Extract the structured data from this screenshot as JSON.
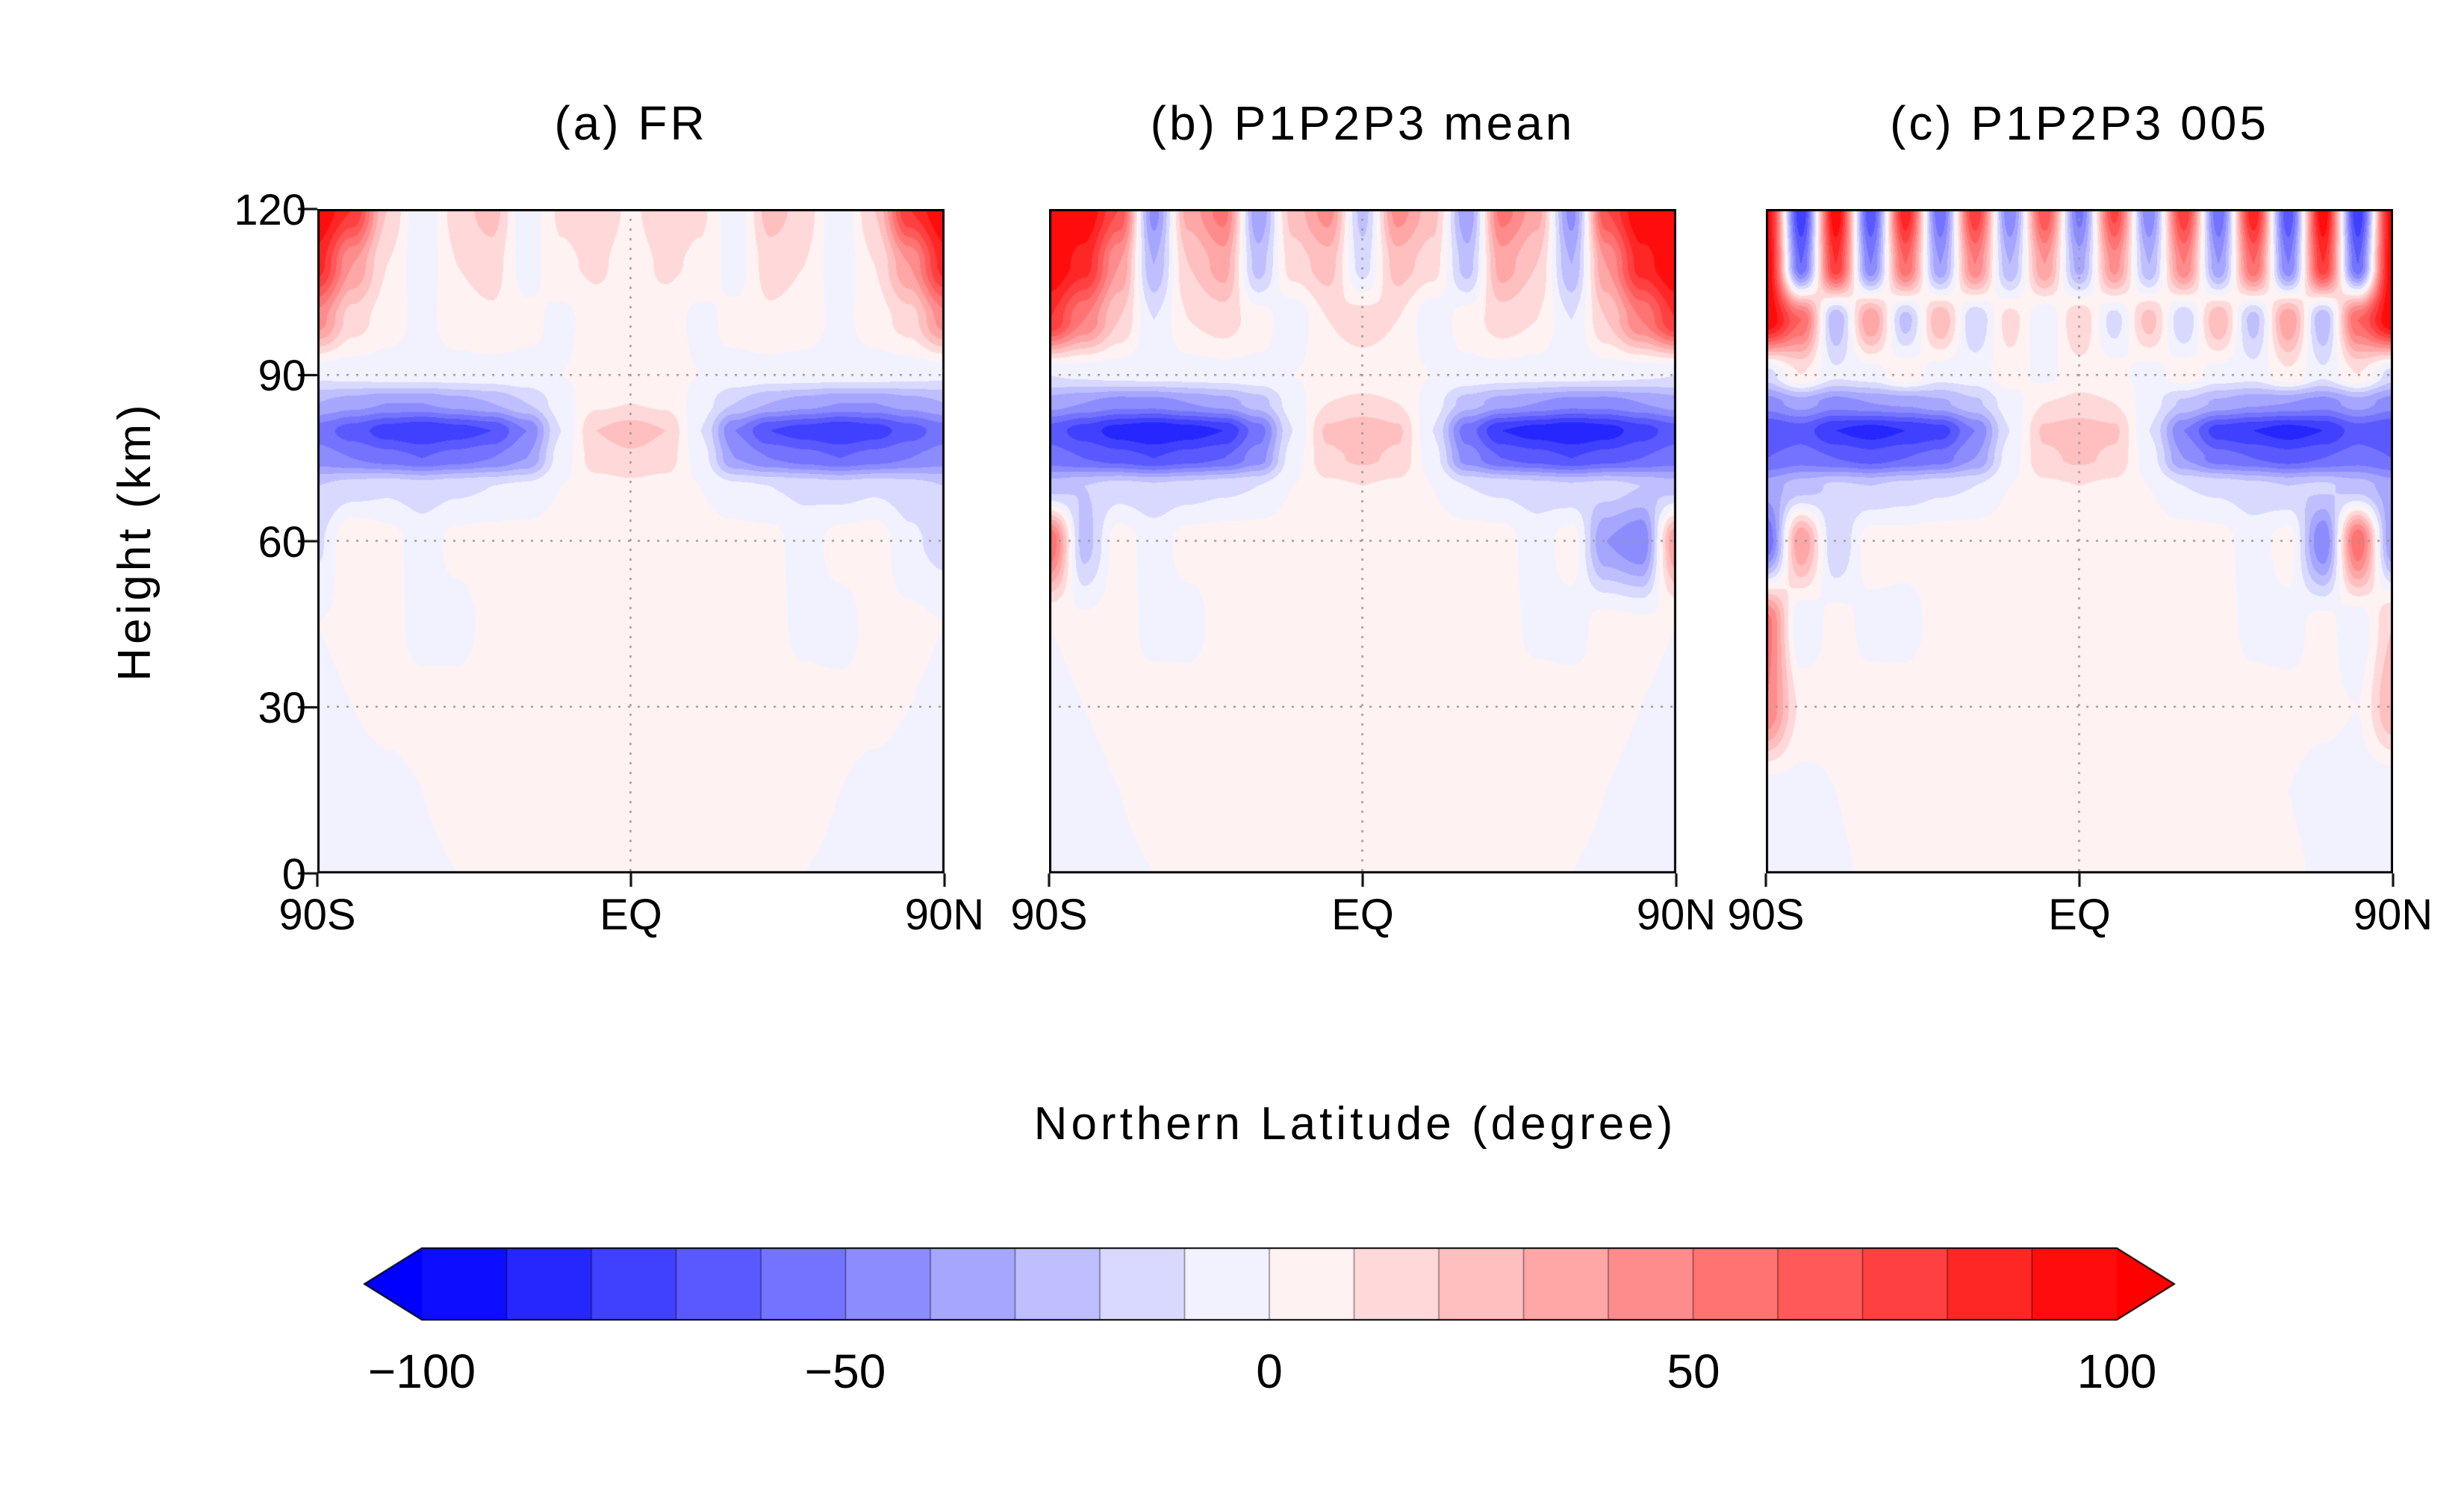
{
  "figure": {
    "y_axis": {
      "label": "Height (km)",
      "tick_labels": [
        "0",
        "30",
        "60",
        "90",
        "120"
      ],
      "tick_values": [
        0,
        30,
        60,
        90,
        120
      ],
      "range": [
        0,
        120
      ]
    },
    "x_axis": {
      "label": "Northern Latitude (degree)",
      "tick_labels": [
        "90S",
        "EQ",
        "90N"
      ],
      "tick_values": [
        -90,
        0,
        90
      ],
      "range": [
        -90,
        90
      ]
    },
    "gridlines": {
      "y_values": [
        30,
        60,
        90
      ],
      "x_values": [
        0
      ],
      "style": "dotted",
      "color": "#999999"
    },
    "colorbar": {
      "min": -100,
      "max": 100,
      "step": 10,
      "tick_labels": [
        "−100",
        "−50",
        "0",
        "50",
        "100"
      ],
      "tick_values": [
        -100,
        -50,
        0,
        50,
        100
      ],
      "negative_color": "#0000ff",
      "zero_color": "#ffffff",
      "positive_color": "#ff0000",
      "arrow_ends": true
    }
  },
  "chart_data": [
    {
      "type": "heatmap",
      "title": "(a) FR",
      "x_name": "latitude (degree)",
      "y_name": "height (km)",
      "value_range": [
        -100,
        100
      ],
      "contour_interval": 10,
      "x": [
        -90,
        -80,
        -70,
        -60,
        -50,
        -40,
        -30,
        -20,
        -10,
        0,
        10,
        20,
        30,
        40,
        50,
        60,
        70,
        80,
        90
      ],
      "y": [
        0,
        15,
        30,
        45,
        60,
        70,
        75,
        80,
        85,
        90,
        100,
        110,
        120
      ],
      "values": [
        [
          -3,
          -2,
          -2,
          -1,
          0,
          1,
          1,
          2,
          2,
          2,
          2,
          2,
          1,
          1,
          0,
          -1,
          -2,
          -2,
          -3
        ],
        [
          -4,
          -3,
          -2,
          0,
          2,
          3,
          4,
          4,
          5,
          5,
          4,
          4,
          4,
          3,
          2,
          0,
          -2,
          -3,
          -4
        ],
        [
          -2,
          0,
          2,
          3,
          4,
          5,
          5,
          6,
          6,
          6,
          6,
          5,
          5,
          5,
          4,
          3,
          2,
          0,
          -2
        ],
        [
          0,
          2,
          3,
          -3,
          -4,
          3,
          5,
          6,
          6,
          6,
          6,
          5,
          5,
          3,
          -3,
          -4,
          3,
          2,
          0
        ],
        [
          -12,
          10,
          4,
          -5,
          3,
          4,
          4,
          5,
          5,
          5,
          5,
          4,
          4,
          3,
          -5,
          4,
          6,
          -8,
          -14
        ],
        [
          -20,
          -15,
          -12,
          -15,
          -12,
          -10,
          -8,
          0,
          6,
          8,
          6,
          0,
          -8,
          -10,
          -12,
          -15,
          -12,
          -15,
          -20
        ],
        [
          -45,
          -50,
          -55,
          -60,
          -55,
          -50,
          -40,
          -5,
          15,
          18,
          15,
          -5,
          -40,
          -50,
          -55,
          -60,
          -55,
          -50,
          -45
        ],
        [
          -55,
          -65,
          -75,
          -80,
          -75,
          -70,
          -50,
          -10,
          20,
          25,
          20,
          -10,
          -50,
          -70,
          -75,
          -80,
          -75,
          -65,
          -55
        ],
        [
          -30,
          -35,
          -40,
          -40,
          -35,
          -30,
          -20,
          -5,
          8,
          10,
          8,
          -5,
          -20,
          -30,
          -35,
          -40,
          -40,
          -35,
          -30
        ],
        [
          -8,
          -6,
          -5,
          -5,
          -4,
          -4,
          -3,
          0,
          3,
          4,
          3,
          0,
          -3,
          -4,
          -4,
          -5,
          -5,
          -6,
          -8
        ],
        [
          45,
          15,
          5,
          -3,
          5,
          8,
          3,
          -3,
          5,
          8,
          5,
          -3,
          3,
          8,
          5,
          -3,
          5,
          15,
          45
        ],
        [
          85,
          40,
          10,
          -8,
          10,
          15,
          -5,
          8,
          12,
          5,
          12,
          8,
          -5,
          15,
          10,
          -8,
          10,
          40,
          85
        ],
        [
          100,
          80,
          20,
          -10,
          15,
          25,
          -8,
          12,
          18,
          8,
          18,
          12,
          -8,
          25,
          15,
          -10,
          20,
          80,
          100
        ]
      ]
    },
    {
      "type": "heatmap",
      "title": "(b) P1P2P3 mean",
      "x_name": "latitude (degree)",
      "y_name": "height (km)",
      "value_range": [
        -100,
        100
      ],
      "contour_interval": 10,
      "x": [
        -90,
        -80,
        -70,
        -60,
        -50,
        -40,
        -30,
        -20,
        -10,
        0,
        10,
        20,
        30,
        40,
        50,
        60,
        70,
        80,
        90
      ],
      "y": [
        0,
        15,
        30,
        45,
        60,
        70,
        75,
        80,
        85,
        90,
        100,
        110,
        120
      ],
      "values": [
        [
          -3,
          -2,
          -1,
          0,
          1,
          2,
          2,
          3,
          3,
          3,
          3,
          3,
          2,
          2,
          1,
          0,
          -1,
          -2,
          -3
        ],
        [
          -4,
          -2,
          0,
          2,
          3,
          4,
          5,
          5,
          6,
          6,
          5,
          5,
          5,
          4,
          3,
          2,
          0,
          -2,
          -4
        ],
        [
          -2,
          0,
          2,
          4,
          5,
          6,
          6,
          7,
          7,
          7,
          7,
          6,
          6,
          6,
          5,
          4,
          2,
          0,
          -2
        ],
        [
          0,
          2,
          4,
          -3,
          -4,
          4,
          6,
          7,
          7,
          7,
          7,
          6,
          6,
          4,
          -3,
          -4,
          4,
          2,
          0
        ],
        [
          60,
          -25,
          5,
          -5,
          4,
          5,
          5,
          6,
          6,
          6,
          6,
          5,
          5,
          4,
          -5,
          5,
          -40,
          -50,
          40
        ],
        [
          -25,
          -20,
          -15,
          -18,
          -15,
          -12,
          -10,
          0,
          8,
          10,
          8,
          0,
          -10,
          -12,
          -15,
          -18,
          -15,
          -20,
          -25
        ],
        [
          -55,
          -60,
          -65,
          -70,
          -65,
          -60,
          -45,
          -5,
          18,
          22,
          18,
          -5,
          -45,
          -60,
          -65,
          -70,
          -65,
          -60,
          -55
        ],
        [
          -65,
          -75,
          -85,
          -90,
          -85,
          -80,
          -55,
          -10,
          22,
          28,
          22,
          -10,
          -55,
          -80,
          -85,
          -90,
          -85,
          -75,
          -65
        ],
        [
          -35,
          -40,
          -45,
          -45,
          -40,
          -35,
          -25,
          -5,
          10,
          12,
          10,
          -5,
          -25,
          -35,
          -40,
          -45,
          -45,
          -40,
          -35
        ],
        [
          -10,
          -8,
          -6,
          -5,
          -5,
          -4,
          -3,
          0,
          4,
          5,
          4,
          0,
          -3,
          -4,
          -5,
          -5,
          -6,
          -8,
          -10
        ],
        [
          80,
          50,
          20,
          -10,
          10,
          15,
          5,
          -8,
          10,
          15,
          10,
          -8,
          5,
          15,
          10,
          -10,
          20,
          50,
          80
        ],
        [
          100,
          85,
          40,
          -30,
          20,
          35,
          -25,
          15,
          25,
          -15,
          25,
          15,
          -25,
          35,
          20,
          -30,
          40,
          85,
          100
        ],
        [
          100,
          100,
          70,
          -45,
          35,
          55,
          -40,
          25,
          45,
          -25,
          45,
          25,
          -40,
          55,
          35,
          -45,
          70,
          100,
          100
        ]
      ]
    },
    {
      "type": "heatmap",
      "title": "(c) P1P2P3 005",
      "x_name": "latitude (degree)",
      "y_name": "height (km)",
      "value_range": [
        -100,
        100
      ],
      "contour_interval": 10,
      "x": [
        -90,
        -80,
        -70,
        -60,
        -50,
        -40,
        -30,
        -20,
        -10,
        0,
        10,
        20,
        30,
        40,
        50,
        60,
        70,
        80,
        90
      ],
      "y": [
        0,
        15,
        30,
        45,
        60,
        70,
        75,
        80,
        85,
        90,
        100,
        110,
        120
      ],
      "values": [
        [
          -3,
          -2,
          -1,
          1,
          2,
          2,
          3,
          3,
          3,
          3,
          3,
          3,
          3,
          2,
          2,
          1,
          -1,
          -2,
          -3
        ],
        [
          -5,
          -3,
          0,
          3,
          4,
          5,
          5,
          6,
          6,
          6,
          6,
          5,
          5,
          4,
          3,
          0,
          -3,
          -5,
          -8
        ],
        [
          50,
          8,
          3,
          4,
          5,
          6,
          6,
          7,
          7,
          7,
          7,
          6,
          6,
          5,
          4,
          3,
          2,
          0,
          30
        ],
        [
          55,
          -10,
          4,
          -3,
          -4,
          4,
          6,
          7,
          7,
          7,
          7,
          6,
          6,
          4,
          -3,
          -4,
          4,
          -8,
          20
        ],
        [
          -60,
          40,
          -20,
          5,
          4,
          5,
          5,
          6,
          6,
          6,
          6,
          5,
          5,
          4,
          -5,
          5,
          -50,
          60,
          -40
        ],
        [
          -35,
          -25,
          -18,
          -20,
          -16,
          -12,
          -10,
          0,
          8,
          10,
          8,
          0,
          -10,
          -12,
          -16,
          -20,
          -18,
          -25,
          -35
        ],
        [
          -60,
          -55,
          -60,
          -65,
          -60,
          -55,
          -40,
          -5,
          18,
          22,
          18,
          -5,
          -40,
          -55,
          -60,
          -65,
          -60,
          -55,
          -60
        ],
        [
          -70,
          -65,
          -80,
          -85,
          -80,
          -75,
          -50,
          -10,
          22,
          26,
          22,
          -10,
          -50,
          -75,
          -80,
          -85,
          -80,
          -65,
          -70
        ],
        [
          -45,
          -35,
          -45,
          -40,
          -38,
          -32,
          -22,
          -5,
          10,
          12,
          10,
          -5,
          -22,
          -32,
          -38,
          -40,
          -45,
          -35,
          -45
        ],
        [
          -15,
          10,
          -8,
          -5,
          8,
          -6,
          -4,
          5,
          -3,
          6,
          4,
          -5,
          6,
          -4,
          -6,
          8,
          -8,
          10,
          -15
        ],
        [
          100,
          60,
          -30,
          40,
          -25,
          30,
          -20,
          15,
          -10,
          20,
          -15,
          25,
          -20,
          30,
          -25,
          40,
          -30,
          60,
          100
        ],
        [
          100,
          -60,
          80,
          -50,
          60,
          -40,
          50,
          -30,
          40,
          -35,
          45,
          -30,
          50,
          -40,
          60,
          -50,
          80,
          -60,
          100
        ],
        [
          100,
          -80,
          100,
          -70,
          90,
          -60,
          80,
          -50,
          70,
          -55,
          75,
          -50,
          80,
          -60,
          90,
          -70,
          100,
          -80,
          100
        ]
      ]
    }
  ]
}
